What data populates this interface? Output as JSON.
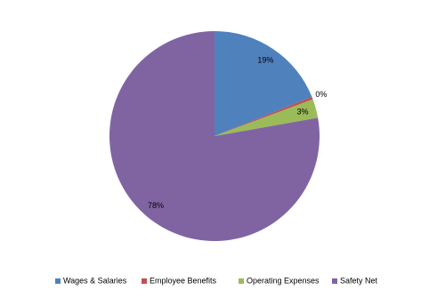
{
  "chart_data": {
    "type": "pie",
    "categories": [
      "Wages & Salaries",
      "Employee Benefits",
      "Operating Expenses",
      "Safety Net"
    ],
    "values": [
      18.9,
      0.4,
      2.9,
      77.8
    ],
    "value_labels": [
      "19%",
      "0%",
      "3%",
      "78%"
    ],
    "colors": [
      "#4f81bd",
      "#c0504d",
      "#9bbb59",
      "#8064a2"
    ],
    "legend": "bottom"
  }
}
